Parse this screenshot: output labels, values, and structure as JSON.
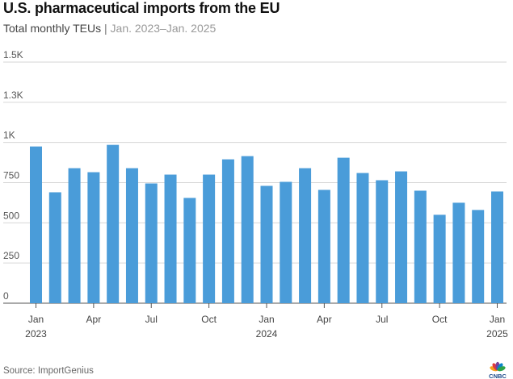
{
  "title": "U.S. pharmaceutical imports from the EU",
  "subtitle": {
    "main": "Total monthly TEUs",
    "separator": "|",
    "range": "Jan. 2023–Jan. 2025"
  },
  "source": "Source: ImportGenius",
  "logo": {
    "name": "CNBC",
    "colors": [
      "#f6a21d",
      "#e03a3e",
      "#7b3f98",
      "#0a85c7",
      "#2ea449"
    ]
  },
  "chart_data": {
    "type": "bar",
    "bar_color": "#4a9cd9",
    "grid": true,
    "ylim": [
      0,
      1500
    ],
    "y_ticks": [
      {
        "value": 0,
        "label": "0"
      },
      {
        "value": 250,
        "label": "250"
      },
      {
        "value": 500,
        "label": "500"
      },
      {
        "value": 750,
        "label": "750"
      },
      {
        "value": 1000,
        "label": "1K"
      },
      {
        "value": 1250,
        "label": "1.3K"
      },
      {
        "value": 1500,
        "label": "1.5K"
      }
    ],
    "categories": [
      "Jan 2023",
      "Feb 2023",
      "Mar 2023",
      "Apr 2023",
      "May 2023",
      "Jun 2023",
      "Jul 2023",
      "Aug 2023",
      "Sep 2023",
      "Oct 2023",
      "Nov 2023",
      "Dec 2023",
      "Jan 2024",
      "Feb 2024",
      "Mar 2024",
      "Apr 2024",
      "May 2024",
      "Jun 2024",
      "Jul 2024",
      "Aug 2024",
      "Sep 2024",
      "Oct 2024",
      "Nov 2024",
      "Dec 2024",
      "Jan 2025"
    ],
    "values": [
      975,
      690,
      840,
      815,
      985,
      840,
      745,
      800,
      655,
      800,
      895,
      915,
      730,
      755,
      840,
      705,
      905,
      810,
      765,
      820,
      700,
      550,
      625,
      580,
      695
    ],
    "x_ticks": [
      {
        "index": 0,
        "label": "Jan",
        "sublabel": "2023"
      },
      {
        "index": 3,
        "label": "Apr",
        "sublabel": ""
      },
      {
        "index": 6,
        "label": "Jul",
        "sublabel": ""
      },
      {
        "index": 9,
        "label": "Oct",
        "sublabel": ""
      },
      {
        "index": 12,
        "label": "Jan",
        "sublabel": "2024"
      },
      {
        "index": 15,
        "label": "Apr",
        "sublabel": ""
      },
      {
        "index": 18,
        "label": "Jul",
        "sublabel": ""
      },
      {
        "index": 21,
        "label": "Oct",
        "sublabel": ""
      },
      {
        "index": 24,
        "label": "Jan",
        "sublabel": "2025"
      }
    ],
    "ylabel": "",
    "xlabel": ""
  }
}
